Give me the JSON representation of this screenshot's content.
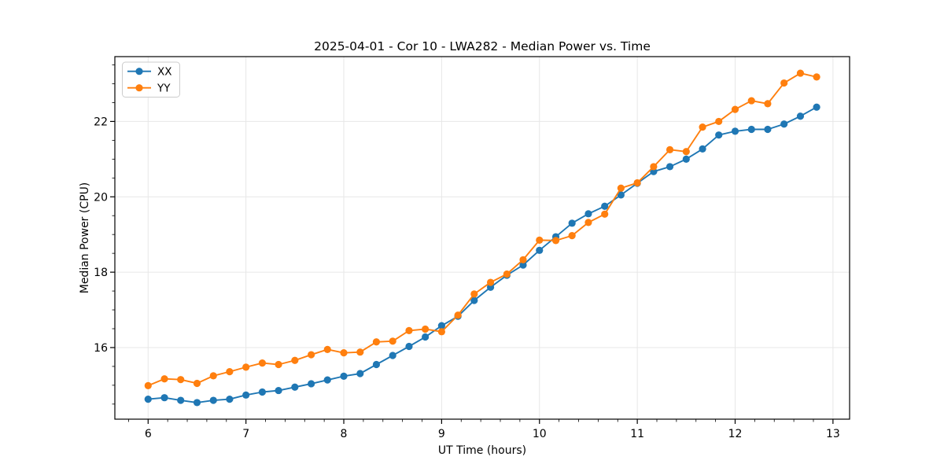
{
  "chart_data": {
    "type": "line",
    "title": "2025-04-01 - Cor 10 - LWA282 - Median Power vs. Time",
    "xlabel": "UT Time (hours)",
    "ylabel": "Median Power (CPU)",
    "xlim": [
      5.66,
      13.17
    ],
    "ylim": [
      14.1,
      23.72
    ],
    "xticks": [
      6,
      7,
      8,
      9,
      10,
      11,
      12,
      13
    ],
    "yticks": [
      16,
      18,
      20,
      22
    ],
    "x_minor_step": 0.2,
    "y_minor_step": 0.5,
    "grid": true,
    "legend_position": "upper-left",
    "x": [
      6.0,
      6.167,
      6.333,
      6.5,
      6.667,
      6.833,
      7.0,
      7.167,
      7.333,
      7.5,
      7.667,
      7.833,
      8.0,
      8.167,
      8.333,
      8.5,
      8.667,
      8.833,
      9.0,
      9.167,
      9.333,
      9.5,
      9.667,
      9.833,
      10.0,
      10.167,
      10.333,
      10.5,
      10.667,
      10.833,
      11.0,
      11.167,
      11.333,
      11.5,
      11.667,
      11.833,
      12.0,
      12.167,
      12.333,
      12.5,
      12.667,
      12.833
    ],
    "series": [
      {
        "name": "XX",
        "color": "#1f77b4",
        "values": [
          14.63,
          14.67,
          14.6,
          14.54,
          14.6,
          14.63,
          14.74,
          14.82,
          14.86,
          14.95,
          15.04,
          15.14,
          15.24,
          15.31,
          15.55,
          15.79,
          16.03,
          16.28,
          16.58,
          16.83,
          17.25,
          17.6,
          17.92,
          18.19,
          18.58,
          18.94,
          19.3,
          19.55,
          19.75,
          20.05,
          20.36,
          20.67,
          20.8,
          21.0,
          21.27,
          21.64,
          21.74,
          21.79,
          21.79,
          21.93,
          22.14,
          22.38
        ]
      },
      {
        "name": "YY",
        "color": "#ff7f0e",
        "values": [
          14.99,
          15.17,
          15.15,
          15.05,
          15.25,
          15.36,
          15.48,
          15.59,
          15.55,
          15.66,
          15.81,
          15.95,
          15.86,
          15.88,
          16.15,
          16.17,
          16.45,
          16.49,
          16.42,
          16.86,
          17.42,
          17.73,
          17.95,
          18.33,
          18.85,
          18.84,
          18.97,
          19.32,
          19.54,
          20.23,
          20.37,
          20.8,
          21.25,
          21.2,
          21.85,
          22.0,
          22.32,
          22.55,
          22.47,
          23.02,
          23.28,
          23.18
        ]
      }
    ],
    "style": {
      "background": "#ffffff",
      "grid_color": "#e7e7e7",
      "axis_color": "#000000",
      "text_color": "#000000",
      "line_width": 1.9,
      "marker_radius": 4.6
    }
  }
}
